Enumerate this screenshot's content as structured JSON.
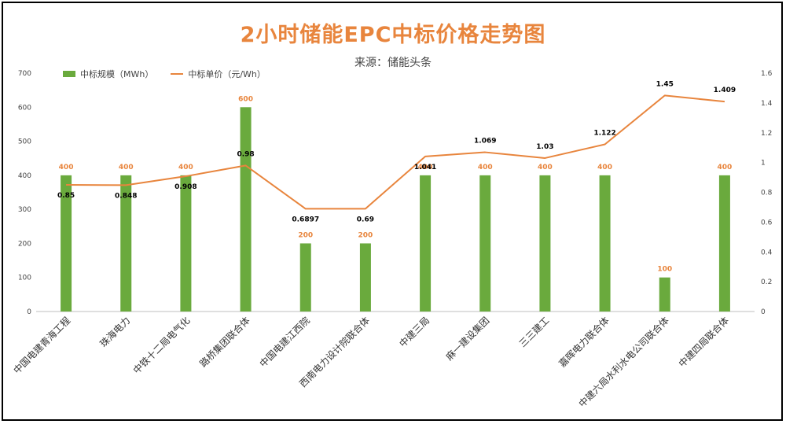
{
  "title": "2小时储能EPC中标价格走势图",
  "subtitle": "来源：储能头条",
  "legend": {
    "bar_label": "中标规模（MWh）",
    "line_label": "中标单价（元/Wh）"
  },
  "colors": {
    "bar": "#6aaa3d",
    "line": "#e8853d",
    "title": "#e8853d",
    "bar_label": "#e8853d",
    "line_label": "#000000"
  },
  "chart_data": {
    "type": "bar",
    "categories": [
      "中国电建青海工程",
      "珠海电力",
      "中铁十二局电气化",
      "路桥集团联合体",
      "中国电建江西院",
      "西南电力设计院联合体",
      "中建三局",
      "麻一建设集团",
      "三三建工",
      "嘉晖电力联合体",
      "中建六局水利水电公司联合体",
      "中建四局联合体"
    ],
    "series": [
      {
        "name": "中标规模（MWh）",
        "type": "bar",
        "axis": "left",
        "values": [
          400,
          400,
          400,
          600,
          200,
          200,
          400,
          400,
          400,
          400,
          100,
          400
        ]
      },
      {
        "name": "中标单价（元/Wh）",
        "type": "line",
        "axis": "right",
        "values": [
          0.85,
          0.848,
          0.908,
          0.98,
          0.6897,
          0.69,
          1.041,
          1.069,
          1.03,
          1.122,
          1.45,
          1.409
        ]
      }
    ],
    "left_axis": {
      "ylim": [
        0,
        700
      ],
      "ticks": [
        0,
        100,
        200,
        300,
        400,
        500,
        600,
        700
      ]
    },
    "right_axis": {
      "ylim": [
        0,
        1.6
      ],
      "ticks": [
        "0",
        "0.2",
        "0.4",
        "0.6",
        "0.8",
        "1",
        "1.2",
        "1.4",
        "1.6"
      ]
    },
    "grid": false,
    "legend_position": "top-left"
  }
}
